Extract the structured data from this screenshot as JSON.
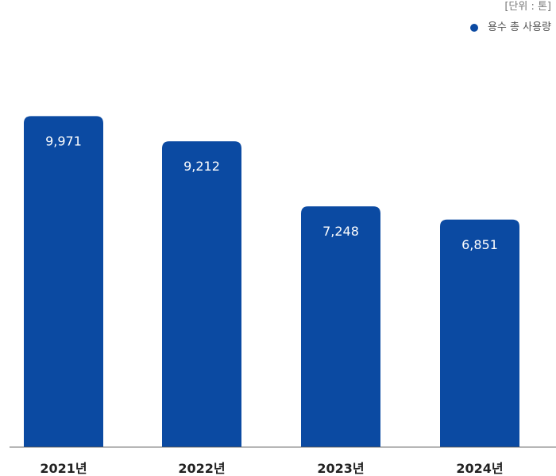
{
  "unit_text": "[단위 : 톤]",
  "legend": {
    "label": "용수 총 사용량",
    "color": "#0b4aa2"
  },
  "chart_data": {
    "type": "bar",
    "categories": [
      "2021년",
      "2022년",
      "2023년",
      "2024년"
    ],
    "series": [
      {
        "name": "용수 총 사용량",
        "values": [
          9971,
          9212,
          7248,
          6851
        ],
        "labels": [
          "9,971",
          "9,212",
          "7,248",
          "6,851"
        ]
      }
    ],
    "ylim": [
      0,
      11800
    ],
    "grid": false,
    "legend_position": "top-right",
    "bar_color": "#0b4aa2",
    "axis_color": "#555555"
  }
}
